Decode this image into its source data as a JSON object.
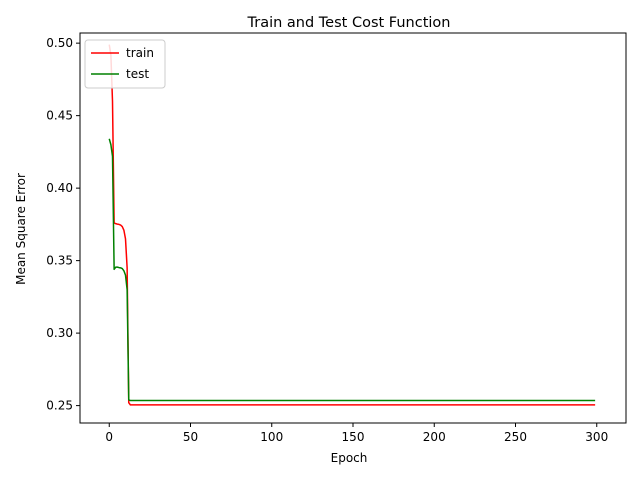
{
  "chart_data": {
    "type": "line",
    "title": "Train and Test Cost Function",
    "xlabel": "Epoch",
    "ylabel": "Mean Square Error",
    "xlim": [
      -18,
      318
    ],
    "ylim": [
      0.238,
      0.507
    ],
    "xticks": [
      0,
      50,
      100,
      150,
      200,
      250,
      300
    ],
    "yticks": [
      0.25,
      0.3,
      0.35,
      0.4,
      0.45,
      0.5
    ],
    "ytick_labels": [
      "0.25",
      "0.30",
      "0.35",
      "0.40",
      "0.45",
      "0.50"
    ],
    "grid": false,
    "legend": {
      "position": "upper-left"
    },
    "series": [
      {
        "name": "train",
        "color": "#ff0000",
        "points": [
          [
            0,
            0.499
          ],
          [
            1,
            0.492
          ],
          [
            2,
            0.46
          ],
          [
            3,
            0.376
          ],
          [
            4,
            0.3755
          ],
          [
            5,
            0.3752
          ],
          [
            6,
            0.375
          ],
          [
            7,
            0.3745
          ],
          [
            8,
            0.3735
          ],
          [
            9,
            0.371
          ],
          [
            10,
            0.365
          ],
          [
            11,
            0.345
          ],
          [
            12,
            0.252
          ],
          [
            13,
            0.2505
          ],
          [
            20,
            0.2505
          ],
          [
            100,
            0.2505
          ],
          [
            200,
            0.2505
          ],
          [
            299,
            0.2505
          ]
        ]
      },
      {
        "name": "test",
        "color": "#008000",
        "points": [
          [
            0,
            0.434
          ],
          [
            1,
            0.43
          ],
          [
            2,
            0.422
          ],
          [
            3,
            0.344
          ],
          [
            4,
            0.3455
          ],
          [
            5,
            0.3455
          ],
          [
            6,
            0.3452
          ],
          [
            7,
            0.345
          ],
          [
            8,
            0.3445
          ],
          [
            9,
            0.343
          ],
          [
            10,
            0.34
          ],
          [
            11,
            0.33
          ],
          [
            12,
            0.254
          ],
          [
            13,
            0.2535
          ],
          [
            20,
            0.2535
          ],
          [
            100,
            0.2535
          ],
          [
            200,
            0.2535
          ],
          [
            299,
            0.2535
          ]
        ]
      }
    ]
  }
}
